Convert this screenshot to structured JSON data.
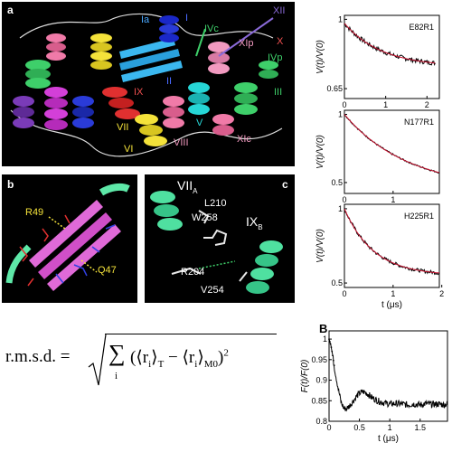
{
  "panel_a": {
    "label": "a",
    "helix_labels": [
      "Ia",
      "I",
      "XII",
      "IVc",
      "XIp",
      "X",
      "IVp",
      "II",
      "IX",
      "III",
      "VII",
      "V",
      "VI",
      "VIII",
      "XIc"
    ]
  },
  "panel_b": {
    "label": "b",
    "residues": [
      "R49",
      "Q47"
    ]
  },
  "panel_c": {
    "label": "c",
    "residues": [
      "VII",
      "A",
      "L210",
      "W258",
      "IX",
      "B",
      "R204",
      "V254"
    ]
  },
  "panel_B": {
    "label": "B"
  },
  "formula": {
    "lhs": "r.m.s.d. =",
    "sum": "∑",
    "index": "i",
    "body": "(⟨r",
    "sub_i": "i",
    "mid": "⟩",
    "sub_T": "T",
    "minus": " − ⟨r",
    "sub_i2": "i",
    "end": "⟩",
    "sub_M0": "M0",
    "close": ")",
    "sup": "2"
  },
  "chart_data": [
    {
      "type": "line",
      "title": "E82R1",
      "ylabel": "V(t)/V(0)",
      "xlabel": "",
      "xlim": [
        0,
        2.3
      ],
      "ylim": [
        0.6,
        1.02
      ],
      "xticks": [
        0,
        1,
        2
      ],
      "yticks": [
        {
          "v": 1,
          "label": "1"
        },
        {
          "v": 0.65,
          "label": "0.65"
        }
      ],
      "grid": false,
      "series": [
        {
          "fit": {
            "a": 0.22,
            "tau": 0.9,
            "c": 0.76
          },
          "noise": 0.012
        }
      ]
    },
    {
      "type": "line",
      "title": "N177R1",
      "ylabel": "V(t)/V(0)",
      "xlabel": "",
      "xlim": [
        0,
        1.95
      ],
      "ylim": [
        0.42,
        1.03
      ],
      "xticks": [
        0,
        1
      ],
      "yticks": [
        {
          "v": 1,
          "label": "1"
        },
        {
          "v": 0.5,
          "label": "0.5"
        }
      ],
      "grid": false,
      "series": [
        {
          "fit": {
            "a": 0.55,
            "tau": 1.3,
            "c": 0.45
          },
          "noise": 0.006
        }
      ]
    },
    {
      "type": "line",
      "title": "H225R1",
      "ylabel": "V(t)/V(0)",
      "xlabel": "t (μs)",
      "xlim": [
        0,
        1.95
      ],
      "ylim": [
        0.47,
        1.03
      ],
      "xticks": [
        0,
        1,
        2
      ],
      "yticks": [
        {
          "v": 1,
          "label": "1"
        },
        {
          "v": 0.5,
          "label": "0.5"
        }
      ],
      "grid": false,
      "series": [
        {
          "fit": {
            "a": 0.45,
            "tau": 0.6,
            "c": 0.55
          },
          "noise": 0.012
        }
      ]
    },
    {
      "type": "line",
      "title": "",
      "ylabel": "F(t)/F(0)",
      "xlabel": "t (μs)",
      "xlim": [
        0,
        1.95
      ],
      "ylim": [
        0.8,
        1.02
      ],
      "xticks": [
        0,
        0.5,
        1,
        1.5
      ],
      "yticks": [
        {
          "v": 1,
          "label": "1"
        },
        {
          "v": 0.95,
          "label": "0.95"
        },
        {
          "v": 0.9,
          "label": "0.9"
        },
        {
          "v": 0.85,
          "label": "0.85"
        },
        {
          "v": 0.8,
          "label": "0.8"
        }
      ],
      "grid": false,
      "points": [
        [
          0,
          1.0
        ],
        [
          0.03,
          0.985
        ],
        [
          0.06,
          0.96
        ],
        [
          0.1,
          0.92
        ],
        [
          0.15,
          0.88
        ],
        [
          0.2,
          0.845
        ],
        [
          0.25,
          0.83
        ],
        [
          0.3,
          0.832
        ],
        [
          0.35,
          0.84
        ],
        [
          0.4,
          0.85
        ],
        [
          0.45,
          0.86
        ],
        [
          0.5,
          0.868
        ],
        [
          0.55,
          0.872
        ],
        [
          0.6,
          0.87
        ],
        [
          0.65,
          0.865
        ],
        [
          0.7,
          0.858
        ],
        [
          0.8,
          0.85
        ],
        [
          0.9,
          0.845
        ],
        [
          1.0,
          0.842
        ],
        [
          1.1,
          0.843
        ],
        [
          1.2,
          0.842
        ],
        [
          1.3,
          0.84
        ],
        [
          1.4,
          0.842
        ],
        [
          1.5,
          0.84
        ],
        [
          1.6,
          0.843
        ],
        [
          1.7,
          0.841
        ],
        [
          1.8,
          0.842
        ],
        [
          1.9,
          0.84
        ],
        [
          1.95,
          0.843
        ]
      ],
      "noise": 0.008
    }
  ]
}
